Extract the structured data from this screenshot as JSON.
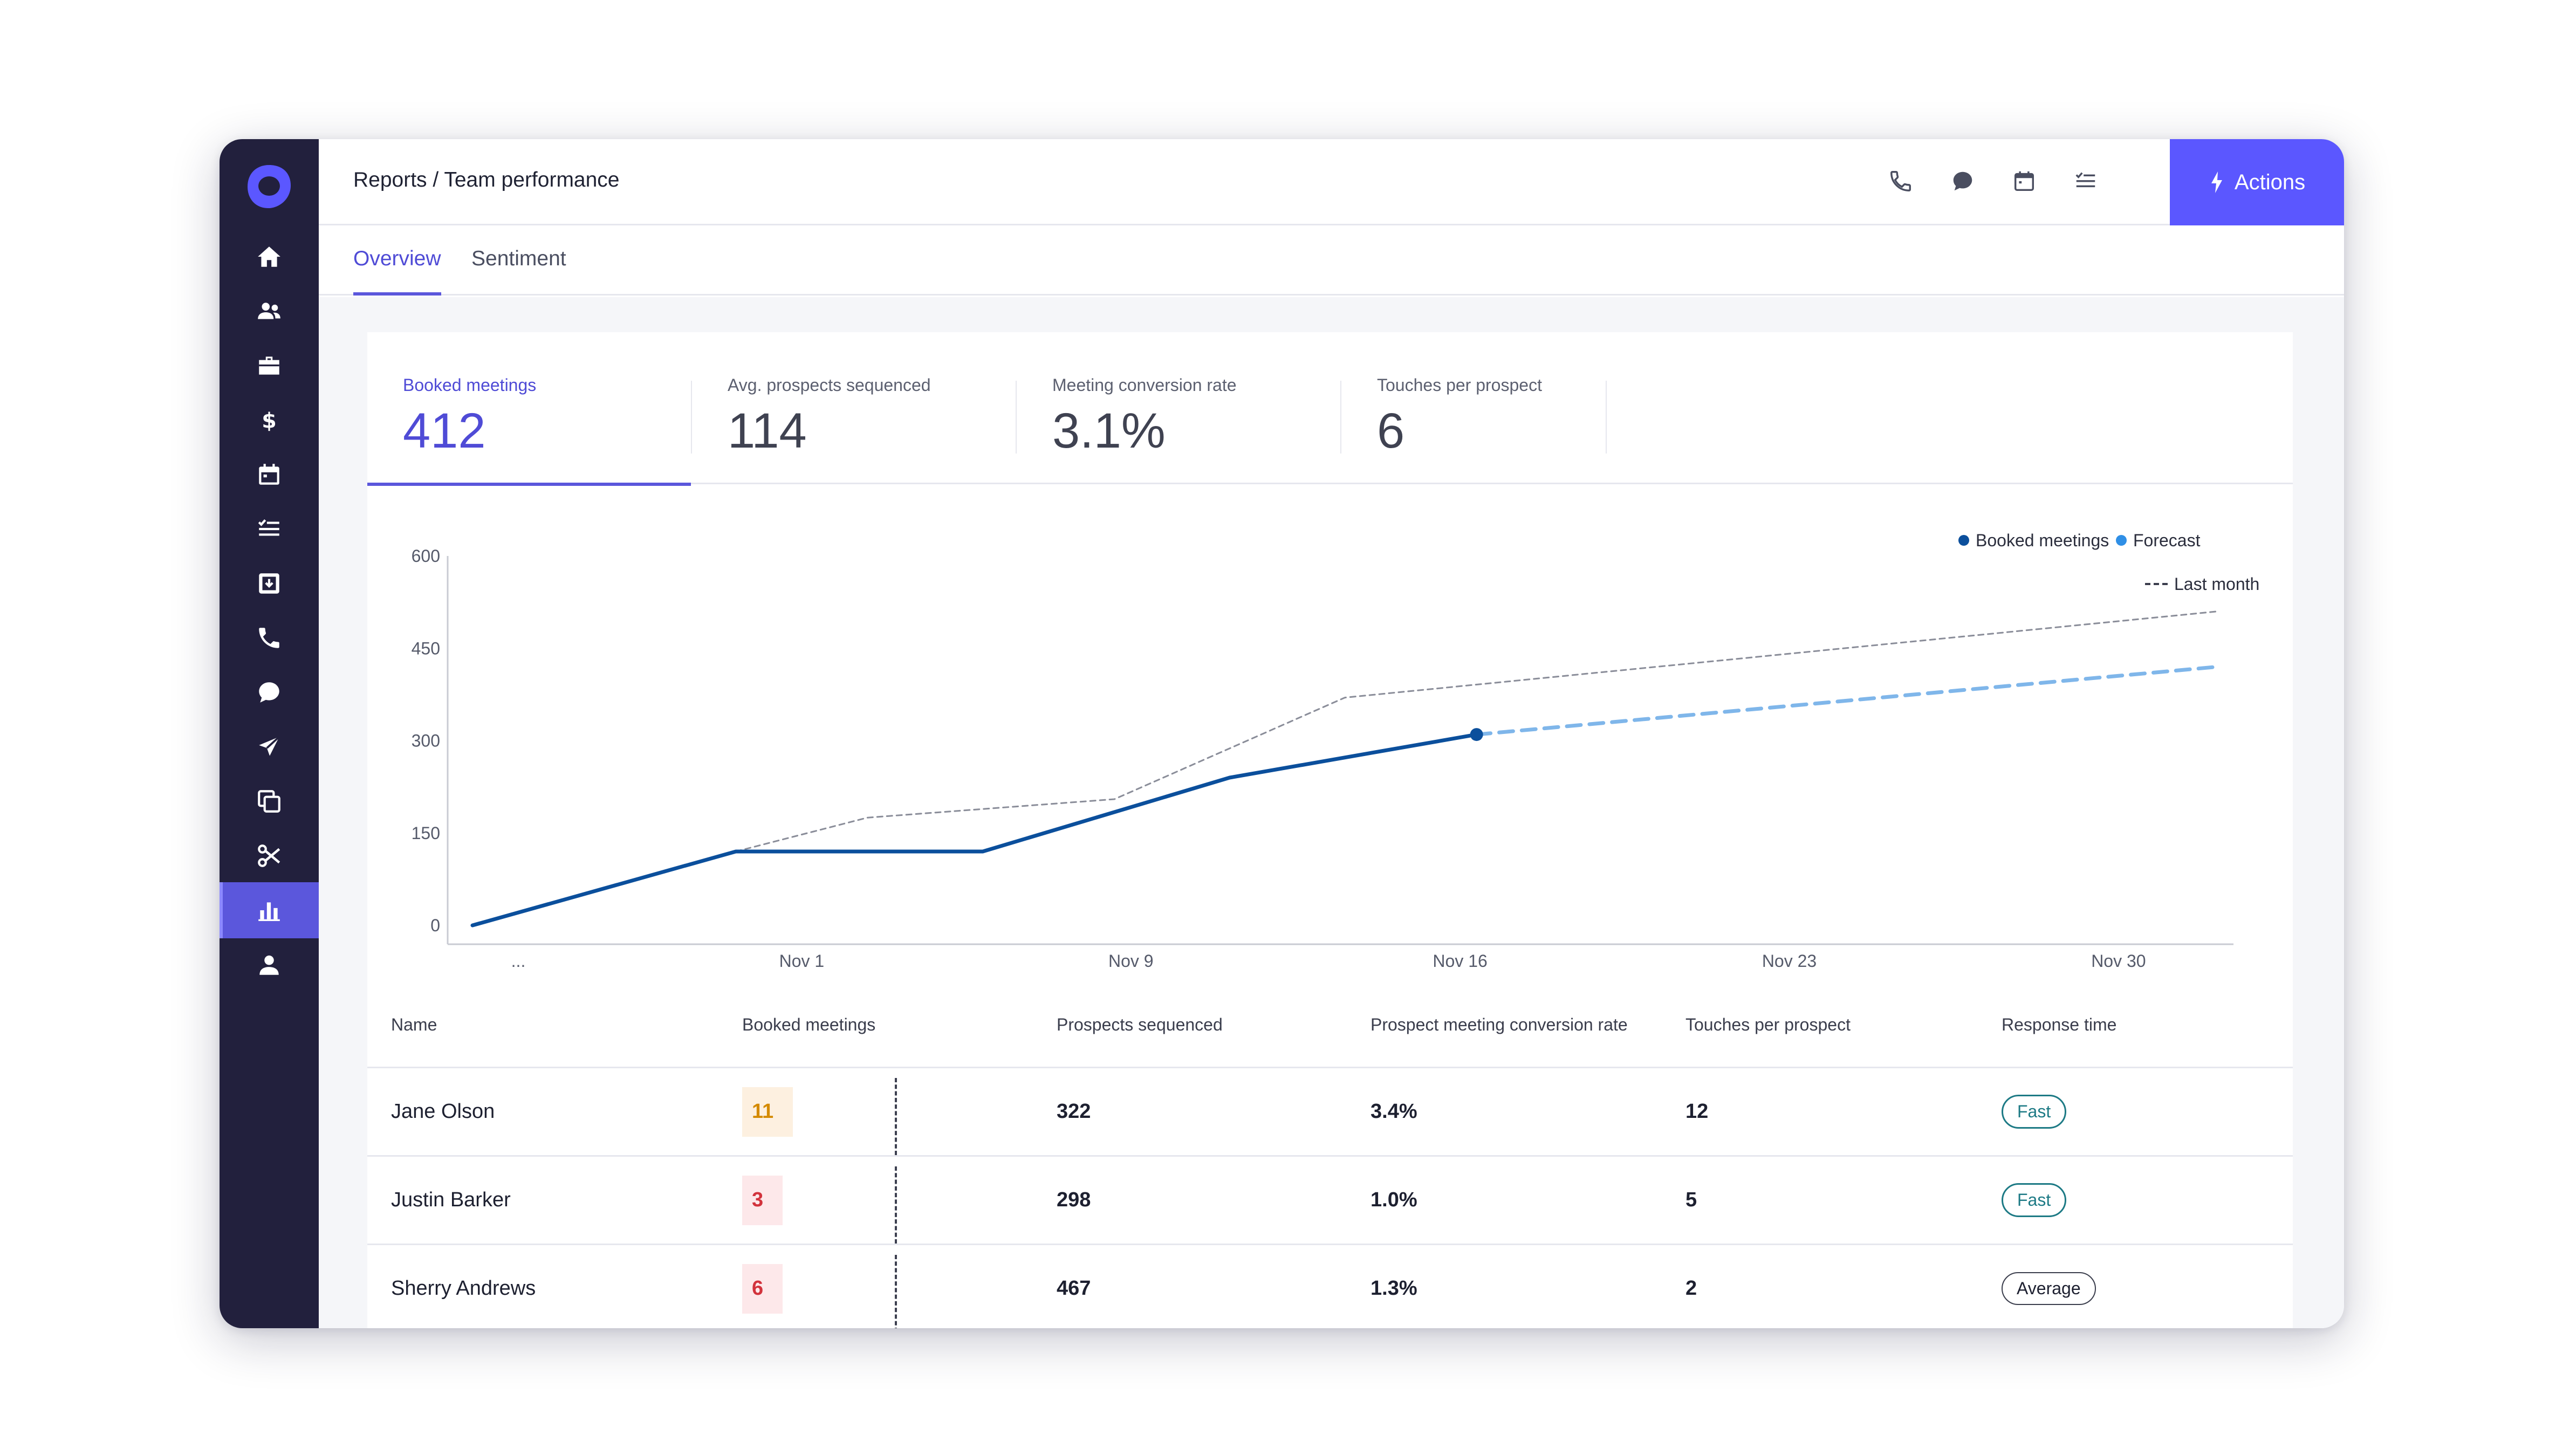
{
  "header": {
    "breadcrumb": "Reports / Team performance",
    "actions_label": "Actions",
    "icons": [
      "phone-icon",
      "chat-icon",
      "calendar-icon",
      "tasks-icon"
    ]
  },
  "sidebar": {
    "logo": "outreach-logo",
    "items": [
      {
        "icon": "home-icon"
      },
      {
        "icon": "people-icon"
      },
      {
        "icon": "briefcase-icon"
      },
      {
        "icon": "dollar-icon"
      },
      {
        "icon": "calendar-icon"
      },
      {
        "icon": "tasks-icon"
      },
      {
        "icon": "inbox-icon"
      },
      {
        "icon": "phone-icon"
      },
      {
        "icon": "chat-icon"
      },
      {
        "icon": "send-icon"
      },
      {
        "icon": "copy-icon"
      },
      {
        "icon": "scissors-icon"
      },
      {
        "icon": "bar-chart-icon",
        "active": true
      },
      {
        "icon": "user-icon"
      }
    ]
  },
  "tabs": [
    {
      "label": "Overview",
      "active": true
    },
    {
      "label": "Sentiment",
      "active": false
    }
  ],
  "metrics": [
    {
      "label": "Booked meetings",
      "value": "412",
      "active": true
    },
    {
      "label": "Avg. prospects sequenced",
      "value": "114",
      "active": false
    },
    {
      "label": "Meeting conversion rate",
      "value": "3.1%",
      "active": false
    },
    {
      "label": "Touches per prospect",
      "value": "6",
      "active": false
    }
  ],
  "chart_data": {
    "type": "line",
    "title": "",
    "xlabel": "",
    "ylabel": "",
    "ylim": [
      0,
      600
    ],
    "y_ticks": [
      0,
      150,
      300,
      450,
      600
    ],
    "x_ticks": [
      "...",
      "Nov 1",
      "Nov 9",
      "Nov 16",
      "Nov 23",
      "Nov 30"
    ],
    "x_tick_positions": [
      0,
      1,
      2,
      3,
      4,
      5
    ],
    "xlim": [
      0,
      5.3
    ],
    "legend": [
      "Booked meetings",
      "Forecast",
      "Last month"
    ],
    "legend_position": "top-right",
    "grid": false,
    "colors": {
      "booked": "#0b4f9c",
      "forecast": "#7fb6ea",
      "last_month": "#8a8d99"
    },
    "series": [
      {
        "name": "Booked meetings",
        "style": "solid",
        "x": [
          0,
          0.8,
          1.55,
          2.3,
          3.05
        ],
        "y": [
          0,
          120,
          120,
          240,
          310
        ]
      },
      {
        "name": "Forecast",
        "style": "dashed",
        "x": [
          3.05,
          5.3
        ],
        "y": [
          310,
          420
        ]
      },
      {
        "name": "Last month",
        "style": "dotted",
        "x": [
          0.8,
          1.2,
          1.95,
          2.65,
          5.3
        ],
        "y": [
          120,
          175,
          205,
          370,
          510
        ]
      }
    ]
  },
  "table": {
    "columns": [
      "Name",
      "Booked meetings",
      "Prospects sequenced",
      "Prospect meeting conversion rate",
      "Touches per prospect",
      "Response time"
    ],
    "rows": [
      {
        "name": "Jane Olson",
        "booked": "11",
        "booked_color": "#d48a00",
        "booked_bg": "#fdf0e0",
        "prospects": "322",
        "conversion": "3.4%",
        "touches": "12",
        "response": "Fast",
        "response_style": "teal"
      },
      {
        "name": "Justin Barker",
        "booked": "3",
        "booked_color": "#d2323c",
        "booked_bg": "#fde8ea",
        "prospects": "298",
        "conversion": "1.0%",
        "touches": "5",
        "response": "Fast",
        "response_style": "teal"
      },
      {
        "name": "Sherry Andrews",
        "booked": "6",
        "booked_color": "#d2323c",
        "booked_bg": "#fde8ea",
        "prospects": "467",
        "conversion": "1.3%",
        "touches": "2",
        "response": "Average",
        "response_style": "neutral"
      }
    ]
  }
}
